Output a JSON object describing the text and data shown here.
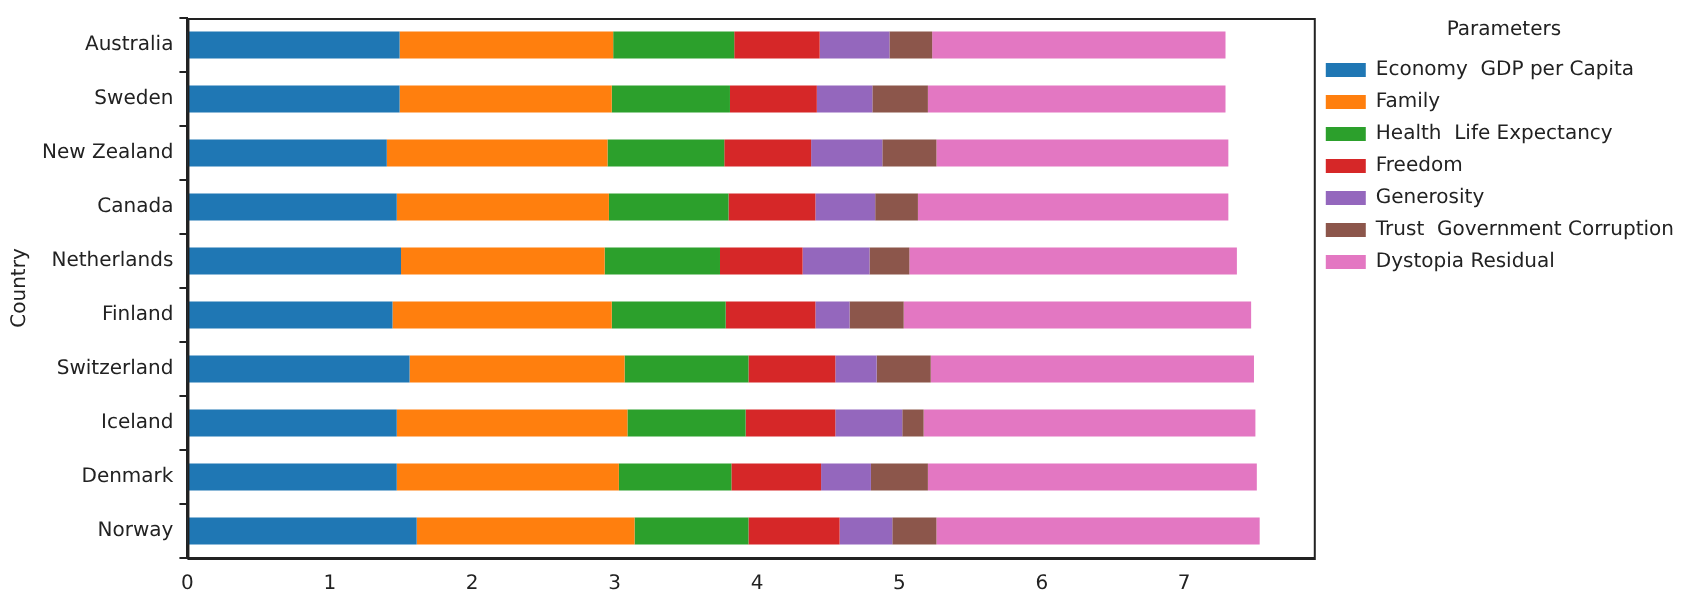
{
  "chart_data": {
    "type": "bar",
    "orientation": "horizontal",
    "stacked": true,
    "ylabel": "Country",
    "legend_title": "Parameters",
    "legend": "top right",
    "categories": [
      "Australia",
      "Sweden",
      "New Zealand",
      "Canada",
      "Netherlands",
      "Finland",
      "Switzerland",
      "Iceland",
      "Denmark",
      "Norway"
    ],
    "xlim": [
      0,
      7.91
    ],
    "xticks": [
      0,
      1,
      2,
      3,
      4,
      5,
      6,
      7
    ],
    "grid": false,
    "series": [
      {
        "name": "Economy  GDP per Capita",
        "color": "#1f77b4",
        "values": [
          1.49,
          1.49,
          1.4,
          1.47,
          1.5,
          1.44,
          1.56,
          1.47,
          1.47,
          1.61
        ]
      },
      {
        "name": "Family",
        "color": "#ff7f0e",
        "values": [
          1.5,
          1.49,
          1.55,
          1.49,
          1.43,
          1.54,
          1.51,
          1.62,
          1.56,
          1.53
        ]
      },
      {
        "name": "Health  Life Expectancy",
        "color": "#2ca02c",
        "values": [
          0.85,
          0.83,
          0.82,
          0.84,
          0.81,
          0.8,
          0.87,
          0.83,
          0.79,
          0.8
        ]
      },
      {
        "name": "Freedom",
        "color": "#d62728",
        "values": [
          0.6,
          0.61,
          0.61,
          0.61,
          0.58,
          0.63,
          0.61,
          0.63,
          0.63,
          0.64
        ]
      },
      {
        "name": "Generosity",
        "color": "#9467bd",
        "values": [
          0.49,
          0.39,
          0.5,
          0.42,
          0.47,
          0.24,
          0.29,
          0.47,
          0.35,
          0.37
        ]
      },
      {
        "name": "Trust  Government Corruption",
        "color": "#8c564b",
        "values": [
          0.3,
          0.39,
          0.38,
          0.3,
          0.28,
          0.38,
          0.38,
          0.15,
          0.4,
          0.31
        ]
      },
      {
        "name": "Dystopia Residual",
        "color": "#e377c2",
        "values": [
          2.06,
          2.09,
          2.05,
          2.18,
          2.3,
          2.44,
          2.27,
          2.33,
          2.31,
          2.27
        ]
      }
    ]
  }
}
